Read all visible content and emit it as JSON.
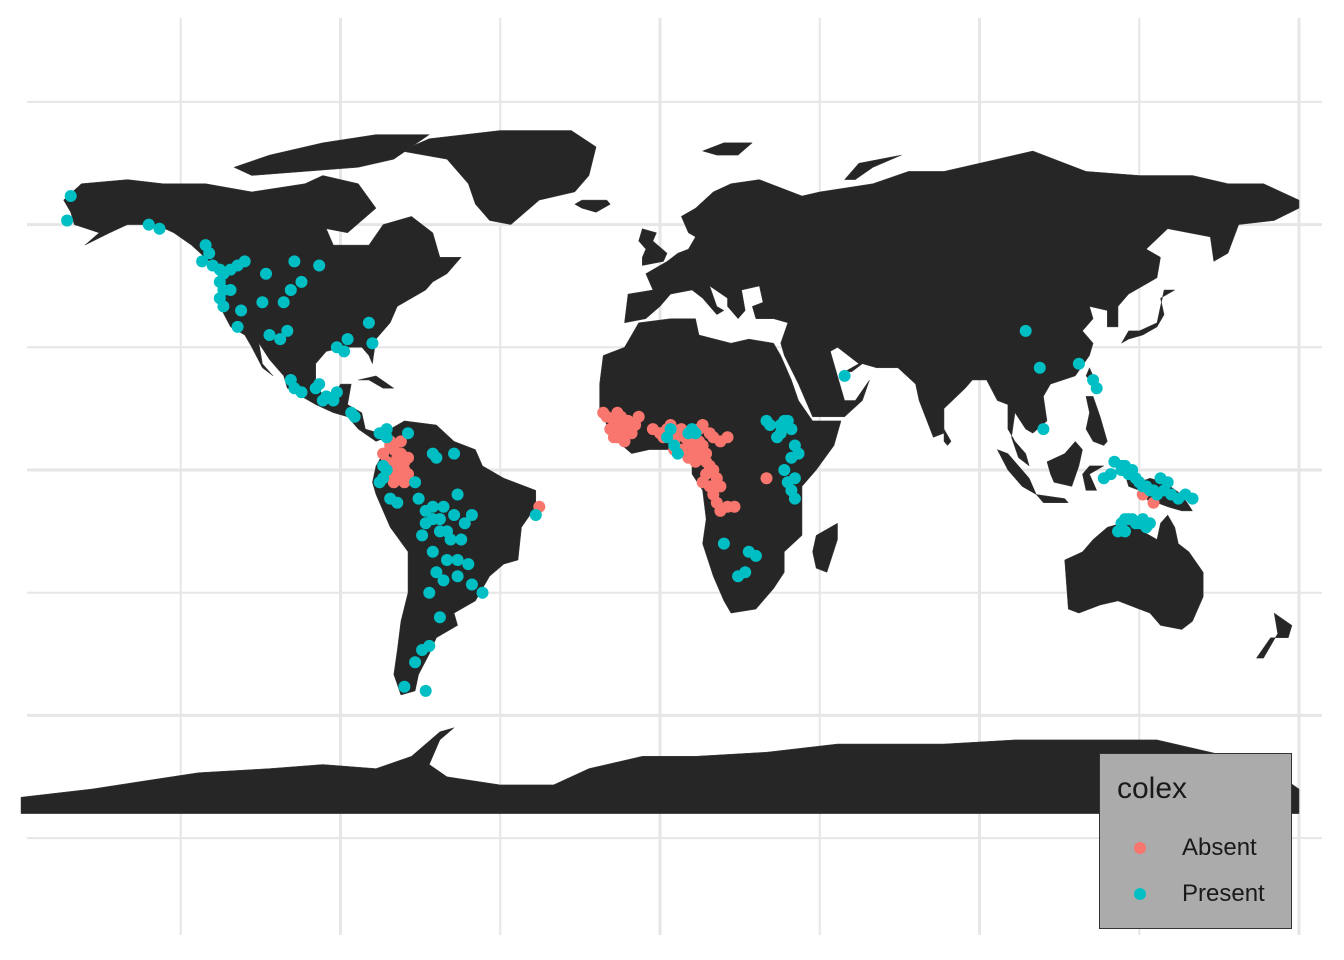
{
  "map": {
    "land_color": "#262626",
    "grid_color": "#e6e6e6",
    "background": "#ffffff",
    "legend_position": "bottom-right"
  },
  "legend": {
    "title": "colex",
    "items": [
      {
        "label": "Absent",
        "color": "#f8766d"
      },
      {
        "label": "Present",
        "color": "#00bfc4"
      }
    ]
  },
  "chart_data": {
    "type": "scatter",
    "projection": "equirectangular-style world map",
    "xlim": [
      -180,
      180
    ],
    "ylim": [
      -90,
      84
    ],
    "grid": true,
    "series": [
      {
        "name": "Absent",
        "color": "#f8766d",
        "points": [
          [
            -76,
            7
          ],
          [
            -75,
            5
          ],
          [
            -73,
            4
          ],
          [
            -74,
            3
          ],
          [
            -72,
            2
          ],
          [
            -74,
            1
          ],
          [
            -72,
            0
          ],
          [
            -73,
            -2
          ],
          [
            -75,
            -1
          ],
          [
            -71,
            -1
          ],
          [
            -76,
            6
          ],
          [
            -71,
            3
          ],
          [
            -77,
            2
          ],
          [
            -72,
            -3
          ],
          [
            -75,
            -3
          ],
          [
            -73,
            7
          ],
          [
            -78,
            4
          ],
          [
            -16,
            14
          ],
          [
            -15,
            13
          ],
          [
            -13,
            12
          ],
          [
            -12,
            11
          ],
          [
            -14,
            10
          ],
          [
            -11,
            9
          ],
          [
            -13,
            8
          ],
          [
            -10,
            10
          ],
          [
            -9,
            12
          ],
          [
            -11,
            13
          ],
          [
            -12,
            14
          ],
          [
            -7,
            11
          ],
          [
            -8,
            9
          ],
          [
            -10,
            7
          ],
          [
            -12,
            8
          ],
          [
            -6,
            13
          ],
          [
            -2,
            10
          ],
          [
            0,
            9
          ],
          [
            1,
            8
          ],
          [
            3,
            11
          ],
          [
            4,
            7
          ],
          [
            5,
            9
          ],
          [
            6,
            10
          ],
          [
            7,
            8
          ],
          [
            8,
            7
          ],
          [
            9,
            6
          ],
          [
            10,
            5
          ],
          [
            11,
            7
          ],
          [
            12,
            6
          ],
          [
            13,
            4
          ],
          [
            8,
            3
          ],
          [
            9,
            4
          ],
          [
            10,
            2
          ],
          [
            6,
            5
          ],
          [
            4,
            5
          ],
          [
            3,
            8
          ],
          [
            2,
            10
          ],
          [
            12,
            3
          ],
          [
            13,
            2
          ],
          [
            14,
            1
          ],
          [
            15,
            0
          ],
          [
            13,
            -1
          ],
          [
            12,
            -3
          ],
          [
            14,
            -4
          ],
          [
            15,
            -6
          ],
          [
            16,
            -8
          ],
          [
            17,
            -10
          ],
          [
            19,
            -9
          ],
          [
            21,
            -9
          ],
          [
            17,
            -4
          ],
          [
            16,
            -2
          ],
          [
            12,
            11
          ],
          [
            15,
            8
          ],
          [
            17,
            7
          ],
          [
            19,
            8
          ],
          [
            14,
            9
          ],
          [
            11,
            10
          ],
          [
            30,
            -2
          ],
          [
            -34,
            -9
          ],
          [
            136,
            -6
          ],
          [
            139,
            -8
          ]
        ]
      },
      {
        "name": "Present",
        "color": "#00bfc4",
        "points": [
          [
            -166,
            67
          ],
          [
            -167,
            61
          ],
          [
            -144,
            60
          ],
          [
            -141,
            59
          ],
          [
            -128,
            55
          ],
          [
            -127,
            53
          ],
          [
            -129,
            51
          ],
          [
            -126,
            50
          ],
          [
            -124,
            49
          ],
          [
            -123,
            48
          ],
          [
            -124,
            46
          ],
          [
            -123,
            44
          ],
          [
            -124,
            42
          ],
          [
            -123,
            40
          ],
          [
            -121,
            49
          ],
          [
            -119,
            50
          ],
          [
            -117,
            51
          ],
          [
            -111,
            48
          ],
          [
            -103,
            51
          ],
          [
            -101,
            46
          ],
          [
            -121,
            44
          ],
          [
            -118,
            39
          ],
          [
            -112,
            41
          ],
          [
            -106,
            41
          ],
          [
            -104,
            44
          ],
          [
            -96,
            50
          ],
          [
            -119,
            35
          ],
          [
            -110,
            33
          ],
          [
            -107,
            32
          ],
          [
            -105,
            34
          ],
          [
            -81,
            31
          ],
          [
            -82,
            36
          ],
          [
            -91,
            30
          ],
          [
            -89,
            29
          ],
          [
            -88,
            32
          ],
          [
            -104,
            22
          ],
          [
            -103,
            20
          ],
          [
            -101,
            19
          ],
          [
            -97,
            20
          ],
          [
            -96,
            21
          ],
          [
            -95,
            17
          ],
          [
            -94,
            18
          ],
          [
            -92,
            17
          ],
          [
            -91,
            19
          ],
          [
            -87,
            14
          ],
          [
            -86,
            13
          ],
          [
            -79,
            9
          ],
          [
            -77,
            8
          ],
          [
            -77,
            10
          ],
          [
            -78,
            1
          ],
          [
            -77,
            0
          ],
          [
            -79,
            -3
          ],
          [
            -78,
            -2
          ],
          [
            -76,
            -7
          ],
          [
            -74,
            -8
          ],
          [
            -68,
            -7
          ],
          [
            -66,
            -10
          ],
          [
            -64,
            -9
          ],
          [
            -61,
            -9
          ],
          [
            -62,
            -12
          ],
          [
            -64,
            -12
          ],
          [
            -66,
            -13
          ],
          [
            -60,
            -15
          ],
          [
            -58,
            -11
          ],
          [
            -55,
            -13
          ],
          [
            -53,
            -11
          ],
          [
            -56,
            -17
          ],
          [
            -59,
            -17
          ],
          [
            -62,
            -15
          ],
          [
            -67,
            -16
          ],
          [
            -64,
            -20
          ],
          [
            -60,
            -22
          ],
          [
            -57,
            -22
          ],
          [
            -54,
            -23
          ],
          [
            -57,
            -26
          ],
          [
            -53,
            -28
          ],
          [
            -50,
            -30
          ],
          [
            -63,
            -25
          ],
          [
            -61,
            -27
          ],
          [
            -65,
            -30
          ],
          [
            -62,
            -36
          ],
          [
            -65,
            -43
          ],
          [
            -67,
            -44
          ],
          [
            -69,
            -47
          ],
          [
            -72,
            -53
          ],
          [
            -66,
            -54
          ],
          [
            -69,
            -3
          ],
          [
            -64,
            4
          ],
          [
            -63,
            3
          ],
          [
            -58,
            4
          ],
          [
            -57,
            -6
          ],
          [
            -35,
            -11
          ],
          [
            -71,
            9
          ],
          [
            3,
            10
          ],
          [
            2,
            8
          ],
          [
            4,
            6
          ],
          [
            9,
            10
          ],
          [
            10,
            9
          ],
          [
            8,
            9
          ],
          [
            5,
            4
          ],
          [
            30,
            12
          ],
          [
            31,
            11
          ],
          [
            34,
            11
          ],
          [
            35,
            12
          ],
          [
            33,
            8
          ],
          [
            34,
            9
          ],
          [
            37,
            10
          ],
          [
            36,
            12
          ],
          [
            38,
            6
          ],
          [
            39,
            4
          ],
          [
            37,
            3
          ],
          [
            38,
            -2
          ],
          [
            35,
            0
          ],
          [
            36,
            -3
          ],
          [
            37,
            -5
          ],
          [
            38,
            -7
          ],
          [
            25,
            -20
          ],
          [
            27,
            -21
          ],
          [
            24,
            -25
          ],
          [
            22,
            -26
          ],
          [
            18,
            -18
          ],
          [
            52,
            23
          ],
          [
            108,
            10
          ],
          [
            103,
            34
          ],
          [
            107,
            25
          ],
          [
            123,
            20
          ],
          [
            122,
            22
          ],
          [
            118,
            26
          ],
          [
            128,
            2
          ],
          [
            130,
            0
          ],
          [
            132,
            -1
          ],
          [
            134,
            -2
          ],
          [
            135,
            -3
          ],
          [
            136,
            -4
          ],
          [
            137,
            -4
          ],
          [
            138,
            -5
          ],
          [
            139,
            -5
          ],
          [
            140,
            -6
          ],
          [
            142,
            -5
          ],
          [
            144,
            -6
          ],
          [
            146,
            -7
          ],
          [
            148,
            -6
          ],
          [
            150,
            -7
          ],
          [
            141,
            -2
          ],
          [
            143,
            -3
          ],
          [
            130,
            1
          ],
          [
            131,
            1
          ],
          [
            133,
            0
          ],
          [
            125,
            -2
          ],
          [
            127,
            -1
          ],
          [
            130,
            -13
          ],
          [
            131,
            -12
          ],
          [
            132,
            -12
          ],
          [
            133,
            -12
          ],
          [
            134,
            -13
          ],
          [
            135,
            -13
          ],
          [
            136,
            -12
          ],
          [
            138,
            -13
          ],
          [
            131,
            -15
          ],
          [
            129,
            -15
          ],
          [
            137,
            -14
          ]
        ]
      }
    ]
  }
}
